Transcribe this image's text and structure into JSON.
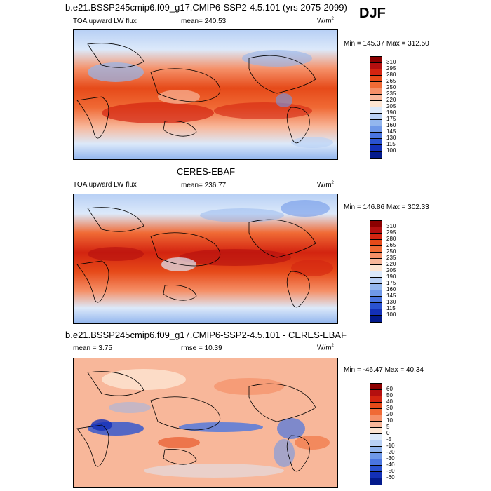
{
  "season": "DJF",
  "panels": [
    {
      "title": "b.e21.BSSP245cmip6.f09_g17.CMIP6-SSP2-4.5.101 (yrs 2075-2099)",
      "left_label": "TOA upward LW flux",
      "center_label": "mean= 240.53",
      "units": "W/m",
      "units_sup": "2",
      "minmax": "Min = 145.37 Max = 312.50",
      "colorbar": {
        "labels": [
          "310",
          "295",
          "280",
          "265",
          "250",
          "235",
          "220",
          "205",
          "190",
          "175",
          "160",
          "145",
          "130",
          "115",
          "100"
        ],
        "colors": [
          "#8b0000",
          "#b40f0f",
          "#d32410",
          "#e64a19",
          "#f06a35",
          "#f59068",
          "#f8b79a",
          "#fde5d2",
          "#dce9fa",
          "#b8d0f5",
          "#93b6ee",
          "#6f98e8",
          "#4a75e0",
          "#2a52d0",
          "#1330b8",
          "#031a8c"
        ]
      }
    },
    {
      "title": "CERES-EBAF",
      "left_label": "TOA upward LW flux",
      "center_label": "mean= 236.77",
      "units": "W/m",
      "units_sup": "2",
      "minmax": "Min = 146.86 Max = 302.33",
      "colorbar": {
        "labels": [
          "310",
          "295",
          "280",
          "265",
          "250",
          "235",
          "220",
          "205",
          "190",
          "175",
          "160",
          "145",
          "130",
          "115",
          "100"
        ],
        "colors": [
          "#8b0000",
          "#b40f0f",
          "#d32410",
          "#e64a19",
          "#f06a35",
          "#f59068",
          "#f8b79a",
          "#fde5d2",
          "#dce9fa",
          "#b8d0f5",
          "#93b6ee",
          "#6f98e8",
          "#4a75e0",
          "#2a52d0",
          "#1330b8",
          "#031a8c"
        ]
      }
    },
    {
      "title": "b.e21.BSSP245cmip6.f09_g17.CMIP6-SSP2-4.5.101 - CERES-EBAF",
      "left_label": "mean =  3.75",
      "center_label": "rmse =  10.39",
      "units": "W/m",
      "units_sup": "2",
      "minmax": "Min = -46.47 Max =  40.34",
      "colorbar": {
        "labels": [
          "60",
          "50",
          "40",
          "30",
          "20",
          "10",
          "5",
          "0",
          "-5",
          "-10",
          "-20",
          "-30",
          "-40",
          "-50",
          "-60"
        ],
        "colors": [
          "#8b0000",
          "#b40f0f",
          "#d32410",
          "#e64a19",
          "#f06a35",
          "#f59068",
          "#f8b79a",
          "#fde5d2",
          "#dce9fa",
          "#b8d0f5",
          "#93b6ee",
          "#6f98e8",
          "#4a75e0",
          "#2a52d0",
          "#1330b8",
          "#031a8c"
        ]
      }
    }
  ]
}
